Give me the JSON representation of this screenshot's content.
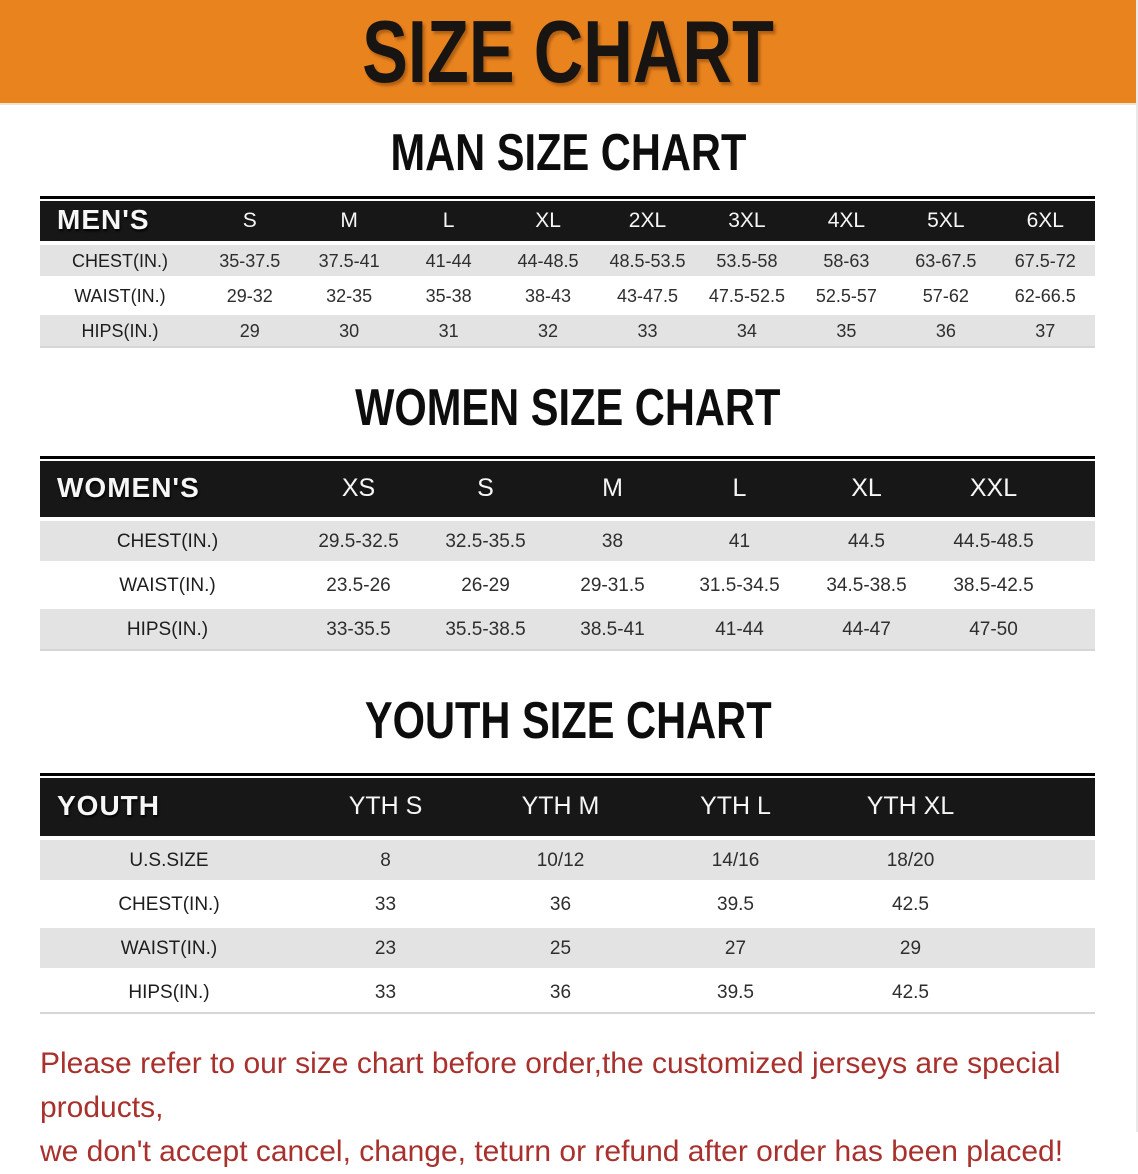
{
  "banner": {
    "title": "SIZE CHART"
  },
  "colors": {
    "banner_bg": "#e8831e",
    "table_header_bg": "#171717",
    "row_stripe_bg": "#e3e3e3",
    "note_text": "#a8302d"
  },
  "men": {
    "heading": "MAN SIZE CHART",
    "header_label": "MEN'S",
    "sizes": [
      "S",
      "M",
      "L",
      "XL",
      "2XL",
      "3XL",
      "4XL",
      "5XL",
      "6XL"
    ],
    "rows": [
      {
        "label": "CHEST(IN.)",
        "values": [
          "35-37.5",
          "37.5-41",
          "41-44",
          "44-48.5",
          "48.5-53.5",
          "53.5-58",
          "58-63",
          "63-67.5",
          "67.5-72"
        ]
      },
      {
        "label": "WAIST(IN.)",
        "values": [
          "29-32",
          "32-35",
          "35-38",
          "38-43",
          "43-47.5",
          "47.5-52.5",
          "52.5-57",
          "57-62",
          "62-66.5"
        ]
      },
      {
        "label": "HIPS(IN.)",
        "values": [
          "29",
          "30",
          "31",
          "32",
          "33",
          "34",
          "35",
          "36",
          "37"
        ]
      }
    ]
  },
  "women": {
    "heading": "WOMEN SIZE CHART",
    "header_label": "WOMEN'S",
    "sizes": [
      "XS",
      "S",
      "M",
      "L",
      "XL",
      "XXL"
    ],
    "rows": [
      {
        "label": "CHEST(IN.)",
        "values": [
          "29.5-32.5",
          "32.5-35.5",
          "38",
          "41",
          "44.5",
          "44.5-48.5"
        ]
      },
      {
        "label": "WAIST(IN.)",
        "values": [
          "23.5-26",
          "26-29",
          "29-31.5",
          "31.5-34.5",
          "34.5-38.5",
          "38.5-42.5"
        ]
      },
      {
        "label": "HIPS(IN.)",
        "values": [
          "33-35.5",
          "35.5-38.5",
          "38.5-41",
          "41-44",
          "44-47",
          "47-50"
        ]
      }
    ]
  },
  "youth": {
    "heading": "YOUTH SIZE CHART",
    "header_label": "YOUTH",
    "sizes": [
      "YTH S",
      "YTH M",
      "YTH L",
      "YTH XL"
    ],
    "rows": [
      {
        "label": "U.S.SIZE",
        "values": [
          "8",
          "10/12",
          "14/16",
          "18/20"
        ]
      },
      {
        "label": "CHEST(IN.)",
        "values": [
          "33",
          "36",
          "39.5",
          "42.5"
        ]
      },
      {
        "label": "WAIST(IN.)",
        "values": [
          "23",
          "25",
          "27",
          "29"
        ]
      },
      {
        "label": "HIPS(IN.)",
        "values": [
          "33",
          "36",
          "39.5",
          "42.5"
        ]
      }
    ]
  },
  "note": {
    "line1": "Please refer to our size chart before order,the customized jerseys are special products,",
    "line2": "we don't accept cancel, change, teturn or refund after order has been placed!"
  }
}
